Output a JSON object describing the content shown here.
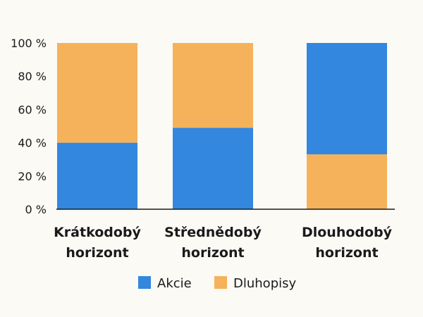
{
  "chart_data": {
    "type": "bar",
    "stacked": true,
    "categories": [
      [
        "Krátkodobý",
        "horizont"
      ],
      [
        "Střednědobý",
        "horizont"
      ],
      [
        "Dlouhodobý",
        "horizont"
      ]
    ],
    "series": [
      {
        "name": "Akcie",
        "color": "#3387de",
        "values": [
          40,
          49,
          67
        ]
      },
      {
        "name": "Dluhopisy",
        "color": "#f5b25a",
        "values": [
          60,
          51,
          33
        ]
      }
    ],
    "stack_order_bottom_to_top": [
      [
        "Akcie",
        "Dluhopisy"
      ],
      [
        "Akcie",
        "Dluhopisy"
      ],
      [
        "Dluhopisy",
        "Akcie"
      ]
    ],
    "ylim": [
      0,
      100
    ],
    "yticks": [
      0,
      20,
      40,
      60,
      80,
      100
    ],
    "ytick_labels": [
      "0 %",
      "20 %",
      "40 %",
      "60 %",
      "80 %",
      "100 %"
    ],
    "grid": false,
    "legend_position": "bottom-center"
  }
}
